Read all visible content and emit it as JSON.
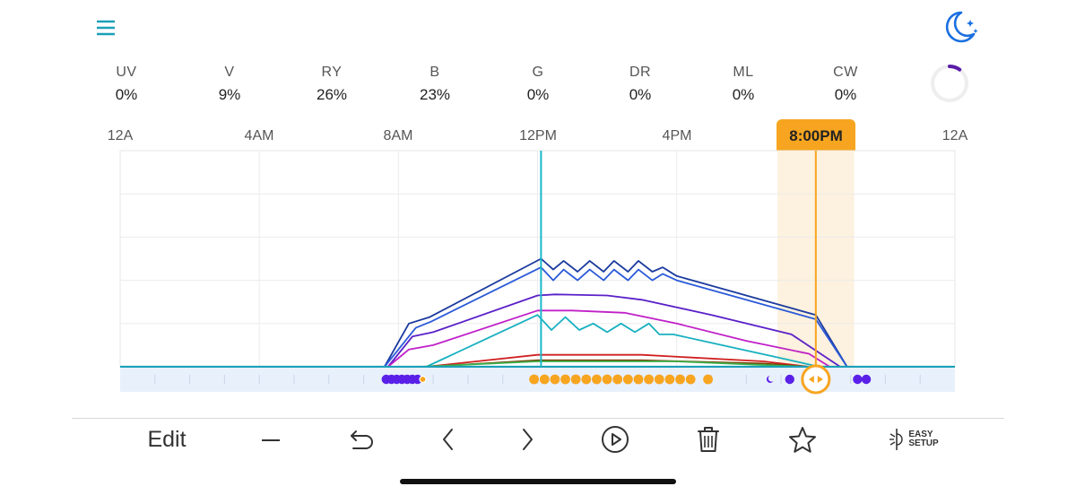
{
  "header": {
    "menu_icon": "hamburger-menu-icon",
    "night_mode_icon": "moon-stars-icon",
    "accent_color": "#1aa0b8",
    "moon_color": "#1a6fe0"
  },
  "channels": [
    {
      "name": "UV",
      "value": "0%"
    },
    {
      "name": "V",
      "value": "9%"
    },
    {
      "name": "RY",
      "value": "26%"
    },
    {
      "name": "B",
      "value": "23%"
    },
    {
      "name": "G",
      "value": "0%"
    },
    {
      "name": "DR",
      "value": "0%"
    },
    {
      "name": "ML",
      "value": "0%"
    },
    {
      "name": "CW",
      "value": "0%"
    }
  ],
  "progress": {
    "fraction": 0.1,
    "color": "#5a1ca8",
    "track_color": "#eeeeee"
  },
  "timeline": {
    "labels": [
      "12A",
      "4AM",
      "8AM",
      "12PM",
      "4PM",
      "12A"
    ],
    "current_time": "8:00PM",
    "current_hour": 20,
    "now_hour": 12.1,
    "highlight_color": "#f7a520"
  },
  "chart_data": {
    "type": "line",
    "x_unit": "hour",
    "xlim": [
      0,
      24
    ],
    "ylim": [
      0,
      100
    ],
    "series": [
      {
        "color": "#1a3a9e",
        "points": [
          [
            7.6,
            0
          ],
          [
            8.3,
            20
          ],
          [
            8.9,
            23
          ],
          [
            12.1,
            50
          ],
          [
            12.45,
            45
          ],
          [
            12.75,
            49
          ],
          [
            13.15,
            44
          ],
          [
            13.5,
            49
          ],
          [
            13.9,
            44
          ],
          [
            14.2,
            49
          ],
          [
            14.6,
            44
          ],
          [
            14.9,
            49
          ],
          [
            15.3,
            44
          ],
          [
            15.6,
            46
          ],
          [
            16.0,
            42
          ],
          [
            20.0,
            24
          ],
          [
            20.9,
            0
          ]
        ]
      },
      {
        "color": "#2a5ad8",
        "points": [
          [
            7.6,
            0
          ],
          [
            8.5,
            18
          ],
          [
            8.95,
            21
          ],
          [
            12.1,
            46
          ],
          [
            12.45,
            40
          ],
          [
            12.75,
            45
          ],
          [
            13.15,
            40
          ],
          [
            13.5,
            45
          ],
          [
            13.9,
            40
          ],
          [
            14.2,
            45
          ],
          [
            14.6,
            40
          ],
          [
            14.9,
            45
          ],
          [
            15.3,
            40
          ],
          [
            15.6,
            43
          ],
          [
            16.0,
            40
          ],
          [
            20.0,
            22
          ],
          [
            20.9,
            0
          ]
        ]
      },
      {
        "color": "#5a20c8",
        "points": [
          [
            7.7,
            0
          ],
          [
            8.4,
            14
          ],
          [
            9.0,
            16
          ],
          [
            12.0,
            33
          ],
          [
            12.5,
            33.5
          ],
          [
            14.0,
            33
          ],
          [
            15.0,
            31
          ],
          [
            17.0,
            24
          ],
          [
            19.3,
            15
          ],
          [
            20.7,
            0
          ]
        ]
      },
      {
        "color": "#c020c8",
        "points": [
          [
            7.7,
            0
          ],
          [
            8.3,
            8
          ],
          [
            9.0,
            10
          ],
          [
            12.0,
            26
          ],
          [
            13.0,
            26
          ],
          [
            14.5,
            25
          ],
          [
            16.0,
            20
          ],
          [
            18.0,
            12
          ],
          [
            19.8,
            6
          ],
          [
            20.4,
            0
          ]
        ]
      },
      {
        "color": "#18b0c0",
        "points": [
          [
            8.8,
            0
          ],
          [
            12.0,
            24
          ],
          [
            12.4,
            17
          ],
          [
            12.8,
            23
          ],
          [
            13.2,
            17
          ],
          [
            13.6,
            20
          ],
          [
            14.0,
            16
          ],
          [
            14.4,
            20
          ],
          [
            14.8,
            16
          ],
          [
            15.2,
            20
          ],
          [
            15.5,
            15
          ],
          [
            15.9,
            15
          ],
          [
            19.0,
            4
          ],
          [
            20.1,
            0
          ]
        ]
      },
      {
        "color": "#d02020",
        "points": [
          [
            8.8,
            0
          ],
          [
            12.0,
            5.5
          ],
          [
            15.0,
            5.5
          ],
          [
            18.5,
            2.5
          ],
          [
            19.8,
            0
          ]
        ]
      },
      {
        "color": "#7a3a00",
        "points": [
          [
            8.8,
            0
          ],
          [
            12.0,
            3
          ],
          [
            15.0,
            3
          ],
          [
            18.5,
            1.5
          ],
          [
            19.8,
            0
          ]
        ]
      },
      {
        "color": "#3cb04a",
        "points": [
          [
            8.6,
            0
          ],
          [
            12.0,
            2.5
          ],
          [
            16.0,
            2.5
          ],
          [
            19.0,
            0.5
          ],
          [
            19.8,
            0
          ]
        ]
      }
    ]
  },
  "schedule_track": {
    "violet_color": "#5a20e8",
    "orange_color": "#f7a520",
    "violet_dot_hours": [
      7.65,
      7.8,
      7.95,
      8.1,
      8.25,
      8.4,
      8.55
    ],
    "orange_dot_hours": [
      11.9,
      12.2,
      12.5,
      12.8,
      13.1,
      13.4,
      13.7,
      14.0,
      14.3,
      14.6,
      14.9,
      15.2,
      15.5,
      15.8,
      16.1,
      16.4,
      16.9
    ],
    "small_marker_hours": [
      8.7
    ],
    "moon_marker_hours": [
      18.7
    ],
    "violet_end_dot_hours": [
      19.25,
      21.2,
      21.45
    ],
    "handle_hour": 20
  },
  "toolbar": {
    "edit_label": "Edit",
    "minus_icon": "minus-icon",
    "undo_icon": "undo-icon",
    "prev_icon": "chevron-left-icon",
    "next_icon": "chevron-right-icon",
    "play_icon": "play-circle-icon",
    "delete_icon": "trash-icon",
    "favorite_icon": "star-icon",
    "easy_setup_icon": "easy-setup-icon",
    "easy_setup_line1": "EASY",
    "easy_setup_line2": "SETUP"
  }
}
